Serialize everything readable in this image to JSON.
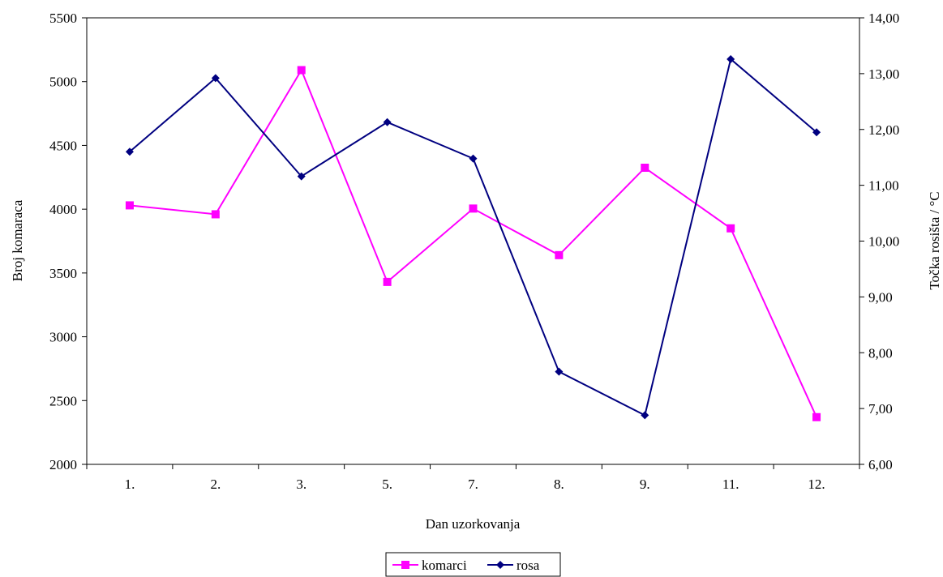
{
  "chart_data": {
    "type": "line",
    "title": "",
    "xlabel": "Dan uzorkovanja",
    "ylabel": "Broj komaraca",
    "y2label": "Točka rosišta / °C",
    "categories": [
      "1.",
      "2.",
      "3.",
      "5.",
      "7.",
      "8.",
      "9.",
      "11.",
      "12."
    ],
    "ylim": [
      2000,
      5500
    ],
    "yticks": [
      "2000",
      "2500",
      "3000",
      "3500",
      "4000",
      "4500",
      "5000",
      "5500"
    ],
    "y2lim": [
      6,
      14
    ],
    "y2ticks": [
      "6,00",
      "7,00",
      "8,00",
      "9,00",
      "10,00",
      "11,00",
      "12,00",
      "13,00",
      "14,00"
    ],
    "legend_position": "bottom",
    "grid": false,
    "series": [
      {
        "name": "komarci",
        "axis": "left",
        "color": "#ff00ff",
        "marker": "square",
        "values": [
          4030,
          3960,
          5090,
          3430,
          4005,
          3640,
          4325,
          3850,
          2370
        ]
      },
      {
        "name": "rosa",
        "axis": "right",
        "color": "#000080",
        "marker": "diamond",
        "values": [
          11.6,
          12.92,
          11.16,
          12.13,
          11.48,
          7.66,
          6.88,
          13.26,
          11.95
        ]
      }
    ]
  }
}
